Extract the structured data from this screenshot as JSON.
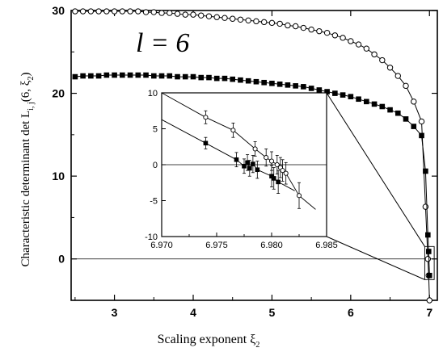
{
  "chart_data": [
    {
      "type": "scatter",
      "annotation": "l = 6",
      "xlabel": "Scaling exponent  ξ",
      "xlabel_sub": "2",
      "ylabel": "Characteristic determinant  det L",
      "ylabel_sub": "i, j",
      "ylabel_arg": "(6, ξ",
      "ylabel_arg_sub": "2",
      "ylabel_arg_close": ")",
      "xlim": [
        2.45,
        7.1
      ],
      "ylim": [
        -5,
        30
      ],
      "xticks": [
        3,
        4,
        5,
        6,
        7
      ],
      "yticks": [
        0,
        10,
        20,
        30
      ],
      "hline": 0,
      "series": [
        {
          "marker": "open-circle",
          "x": [
            2.5,
            2.6,
            2.7,
            2.8,
            2.9,
            3.0,
            3.1,
            3.2,
            3.3,
            3.4,
            3.5,
            3.6,
            3.7,
            3.8,
            3.9,
            4.0,
            4.1,
            4.2,
            4.3,
            4.4,
            4.5,
            4.6,
            4.7,
            4.8,
            4.9,
            5.0,
            5.1,
            5.2,
            5.3,
            5.4,
            5.5,
            5.6,
            5.7,
            5.8,
            5.9,
            6.0,
            6.1,
            6.2,
            6.3,
            6.4,
            6.5,
            6.6,
            6.7,
            6.8,
            6.9,
            6.95,
            6.98,
            6.99,
            7.0
          ],
          "y": [
            29.9,
            29.9,
            29.9,
            29.9,
            29.9,
            29.9,
            29.9,
            29.9,
            29.9,
            29.8,
            29.8,
            29.7,
            29.7,
            29.6,
            29.5,
            29.5,
            29.4,
            29.3,
            29.2,
            29.1,
            29.0,
            28.9,
            28.8,
            28.7,
            28.6,
            28.5,
            28.4,
            28.2,
            28.1,
            27.9,
            27.7,
            27.5,
            27.3,
            27.0,
            26.7,
            26.3,
            25.9,
            25.4,
            24.7,
            24.0,
            23.1,
            22.1,
            20.9,
            19.0,
            16.6,
            6.3,
            0,
            -2,
            -5
          ]
        },
        {
          "marker": "filled-square",
          "x": [
            2.5,
            2.6,
            2.7,
            2.8,
            2.9,
            3.0,
            3.1,
            3.2,
            3.3,
            3.4,
            3.5,
            3.6,
            3.7,
            3.8,
            3.9,
            4.0,
            4.1,
            4.2,
            4.3,
            4.4,
            4.5,
            4.6,
            4.7,
            4.8,
            4.9,
            5.0,
            5.1,
            5.2,
            5.3,
            5.4,
            5.5,
            5.6,
            5.7,
            5.8,
            5.9,
            6.0,
            6.1,
            6.2,
            6.3,
            6.4,
            6.5,
            6.6,
            6.7,
            6.8,
            6.9,
            6.95,
            6.98,
            6.99,
            7.0
          ],
          "y": [
            22.0,
            22.1,
            22.1,
            22.1,
            22.2,
            22.2,
            22.2,
            22.2,
            22.2,
            22.2,
            22.1,
            22.1,
            22.1,
            22.0,
            22.0,
            22.0,
            21.9,
            21.9,
            21.8,
            21.8,
            21.7,
            21.6,
            21.5,
            21.4,
            21.3,
            21.2,
            21.1,
            21.0,
            20.9,
            20.8,
            20.6,
            20.4,
            20.2,
            20.0,
            19.8,
            19.6,
            19.3,
            19.0,
            18.7,
            18.4,
            18.0,
            17.6,
            16.9,
            16.0,
            14.9,
            10.6,
            2.9,
            0.9,
            -2
          ]
        }
      ]
    },
    {
      "type": "scatter",
      "role": "inset",
      "xlim": [
        6.97,
        6.985
      ],
      "ylim": [
        -10,
        10
      ],
      "xticks": [
        "6.970",
        "6.975",
        "6.980",
        "6.985"
      ],
      "yticks": [
        "10",
        "5",
        "0",
        "-5",
        "-10"
      ],
      "hline": 0,
      "series": [
        {
          "marker": "open-circle",
          "x": [
            6.974,
            6.9765,
            6.9785,
            6.9795,
            6.98,
            6.9805,
            6.9808,
            6.981,
            6.9813,
            6.9825
          ],
          "y": [
            6.6,
            4.8,
            2.2,
            1.0,
            0.5,
            0.0,
            -0.4,
            -0.8,
            -1.2,
            -4.3
          ],
          "err": [
            0.9,
            1.0,
            1.0,
            1.2,
            1.3,
            1.3,
            1.4,
            1.5,
            1.5,
            1.8
          ]
        },
        {
          "marker": "filled-square",
          "x": [
            6.974,
            6.9768,
            6.9775,
            6.9778,
            6.978,
            6.9783,
            6.9787,
            6.98,
            6.9802,
            6.9806
          ],
          "y": [
            3.0,
            0.7,
            -0.2,
            0.3,
            -0.5,
            0.1,
            -0.7,
            -1.6,
            -1.9,
            -2.4
          ],
          "err": [
            0.8,
            1.0,
            1.0,
            1.1,
            1.1,
            1.2,
            1.2,
            1.5,
            1.5,
            1.6
          ]
        }
      ]
    }
  ]
}
